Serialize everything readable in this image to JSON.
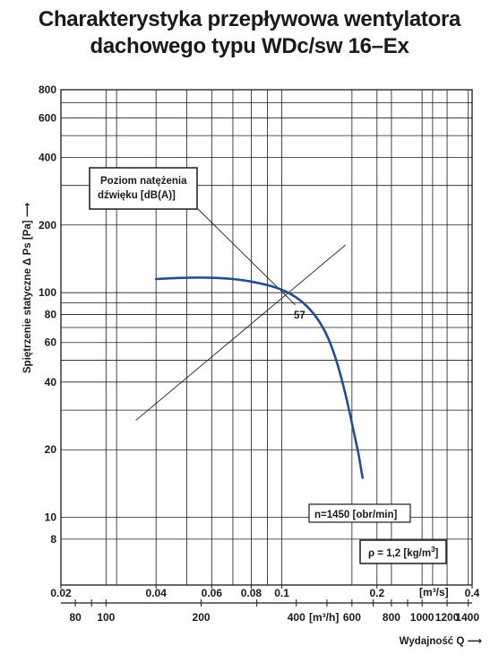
{
  "title_line1": "Charakterystyka przepływowa wentylatora",
  "title_line2": "dachowego typu WDc/sw 16–Ex",
  "chart_data": {
    "type": "line",
    "scale": "log-log",
    "xlim_m3s": [
      0.02,
      0.4
    ],
    "ylim_pa": [
      5,
      800
    ],
    "x_ticks_m3s": [
      0.02,
      0.04,
      0.06,
      0.08,
      0.1,
      0.2,
      0.4
    ],
    "x_tick_labels_m3s": [
      "0.02",
      "0.04",
      "0.06",
      "0.08",
      "0.1",
      "0.2",
      "0.4"
    ],
    "x_unit_m3s": "[m³/s]",
    "x_ticks_m3h": [
      80,
      100,
      200,
      400,
      600,
      800,
      1000,
      1200,
      1400
    ],
    "x_tick_labels_m3h": [
      "80",
      "100",
      "200",
      "400",
      "600",
      "800",
      "1000",
      "1200",
      "1400"
    ],
    "x_unit_m3h": "[m³/h]",
    "y_ticks": [
      8,
      10,
      20,
      40,
      60,
      80,
      100,
      200,
      400,
      600,
      800
    ],
    "y_tick_labels": [
      "8",
      "10",
      "20",
      "40",
      "60",
      "80",
      "100",
      "200",
      "400",
      "600",
      "800"
    ],
    "y_minor_gridlines": [
      30,
      50,
      70,
      90,
      300,
      500,
      700
    ],
    "x_minor_gridlines": [
      0.03,
      0.05,
      0.07,
      0.09,
      0.3
    ],
    "xlabel": "Wydajność Q ⟶",
    "ylabel": "Spiętrzenie statyczne Δ Ps [Pa] ⟶",
    "series": [
      {
        "name": "n=1450 [obr/min]",
        "color": "#1f4e96",
        "x": [
          0.04,
          0.05,
          0.06,
          0.07,
          0.08,
          0.09,
          0.1,
          0.11,
          0.12,
          0.13,
          0.14,
          0.15,
          0.16,
          0.17,
          0.175,
          0.18
        ],
        "y": [
          115,
          116.5,
          116.5,
          115,
          112,
          108,
          103,
          96,
          87,
          76,
          63,
          48,
          34,
          23,
          19,
          15
        ]
      }
    ],
    "sound_level_line": {
      "label": "57",
      "x": [
        0.0345,
        0.159
      ],
      "y": [
        27,
        163
      ]
    },
    "sound_level_pointer": {
      "x": [
        0.0535,
        0.1
      ],
      "y": [
        305,
        85
      ]
    },
    "annotations": {
      "sound_box": "Poziom natężenia dźwięku [dB(A)]",
      "sound_box_line1": "Poziom natężenia",
      "sound_box_line2": "dźwięku [dB(A)]",
      "speed_label": "n=1450 [obr/min]",
      "density_label_prefix": "ρ = 1,2 [kg/m",
      "density_label_sup": "3",
      "density_label_suffix": "]"
    },
    "grid": true
  }
}
